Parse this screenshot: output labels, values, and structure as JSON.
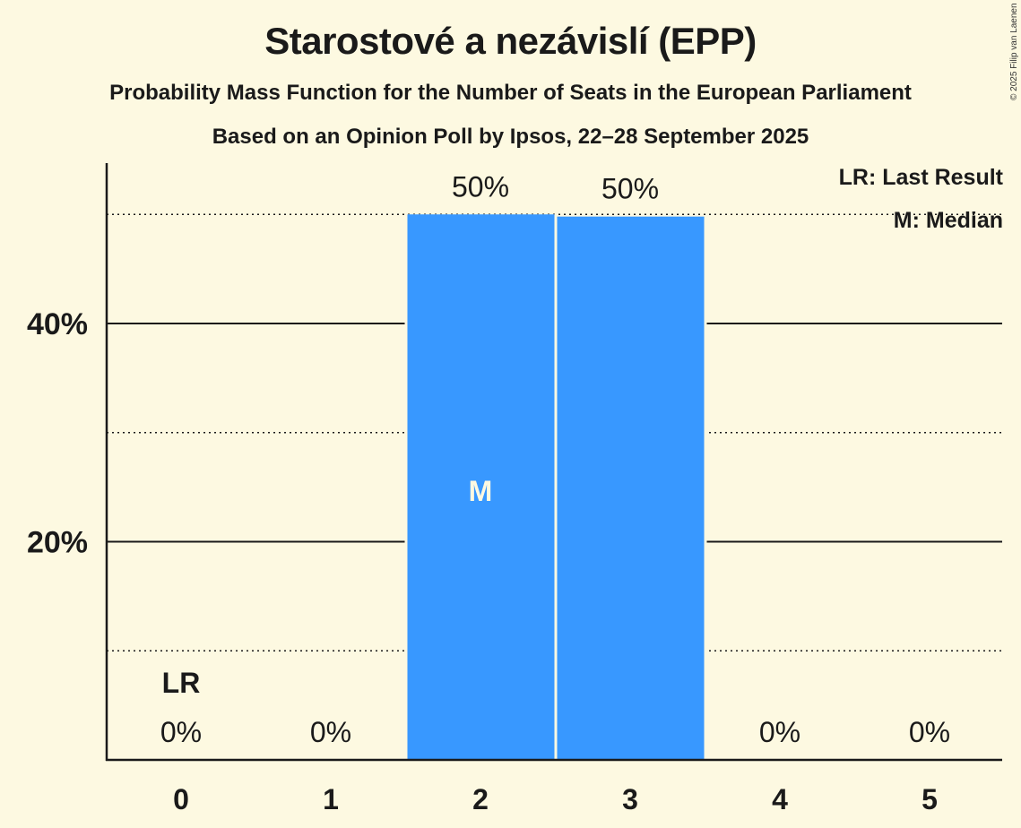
{
  "header": {
    "title": "Starostové a nezávislí (EPP)",
    "subtitle": "Probability Mass Function for the Number of Seats in the European Parliament",
    "source": "Based on an Opinion Poll by Ipsos, 22–28 September 2025",
    "copyright": "© 2025 Filip van Laenen"
  },
  "legend": {
    "lr": "LR: Last Result",
    "m": "M: Median"
  },
  "colors": {
    "background": "#fdf9e1",
    "bar": "#3898ff",
    "text": "#1a1a1a",
    "median_marker": "#fdf9e1"
  },
  "chart_data": {
    "type": "bar",
    "title": "Starostové a nezávislí (EPP)",
    "subtitle": "Probability Mass Function for the Number of Seats in the European Parliament",
    "xlabel": "",
    "ylabel": "",
    "categories": [
      "0",
      "1",
      "2",
      "3",
      "4",
      "5"
    ],
    "values": [
      0,
      0,
      50,
      49.8,
      0,
      0
    ],
    "value_labels": [
      "0%",
      "0%",
      "50%",
      "50%",
      "0%",
      "0%"
    ],
    "ylim": [
      0,
      55
    ],
    "y_ticks": [
      {
        "value": 20,
        "label": "20%"
      },
      {
        "value": 40,
        "label": "40%"
      }
    ],
    "gridlines": {
      "solid": [
        20,
        40
      ],
      "dotted": [
        10,
        30,
        50
      ]
    },
    "annotations": [
      {
        "category": "0",
        "text": "LR",
        "meaning": "Last Result"
      },
      {
        "category": "2",
        "text": "M",
        "meaning": "Median"
      }
    ],
    "legend_position": "top-right"
  }
}
